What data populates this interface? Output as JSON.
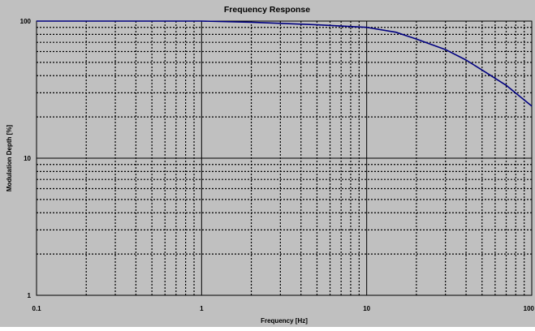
{
  "chart_data": {
    "type": "line",
    "title": "Frequency Response",
    "xlabel": "Frequency [Hz]",
    "ylabel": "Modulation Depth [%]",
    "x_scale": "log",
    "y_scale": "log",
    "xlim": [
      0.1,
      100
    ],
    "ylim": [
      1,
      100
    ],
    "x_ticks": [
      "0.1",
      "1",
      "10",
      "100"
    ],
    "y_ticks": [
      "1",
      "10",
      "100"
    ],
    "grid": true,
    "series": [
      {
        "color": "#000080",
        "x": [
          0.1,
          1,
          2,
          5,
          10,
          15,
          20,
          30,
          40,
          50,
          70,
          100
        ],
        "y": [
          100,
          100,
          98,
          94,
          90,
          83,
          74,
          62,
          52,
          44,
          34,
          24
        ]
      }
    ]
  }
}
